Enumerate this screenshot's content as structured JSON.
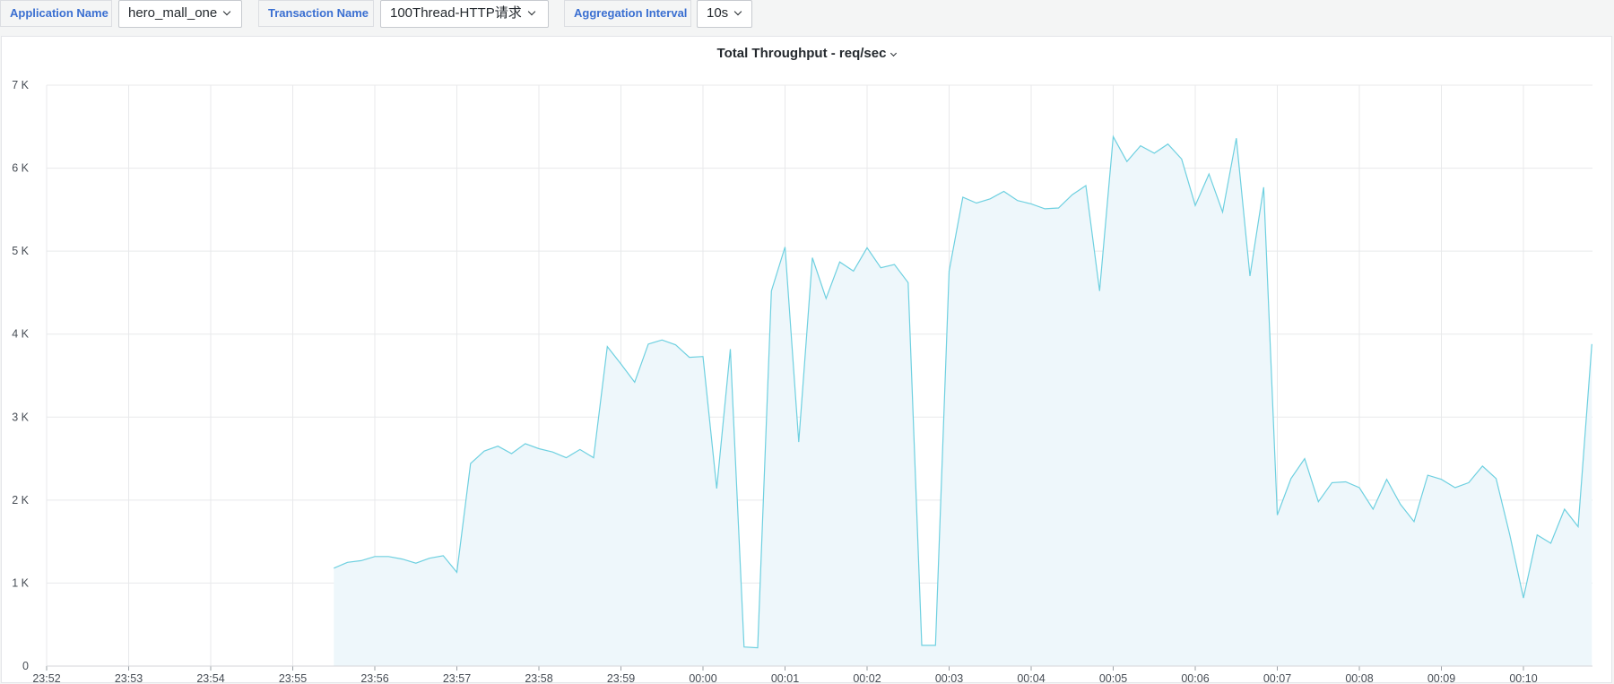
{
  "variables": [
    {
      "label": "Application Name",
      "value": "hero_mall_one"
    },
    {
      "label": "Transaction Name",
      "value": "100Thread-HTTP请求"
    },
    {
      "label": "Aggregation Interval",
      "value": "10s"
    }
  ],
  "panel": {
    "title": "Total Throughput - req/sec"
  },
  "colors": {
    "line": "#6ed0e0",
    "fill": "#eef7fb",
    "grid": "#e8e9eb",
    "label_accent": "#3a6fd1"
  },
  "chart_data": {
    "type": "area",
    "title": "Total Throughput - req/sec",
    "xlabel": "",
    "ylabel": "",
    "ylim": [
      0,
      7000
    ],
    "grid": true,
    "y_ticks": [
      {
        "value": 0,
        "label": "0"
      },
      {
        "value": 1000,
        "label": "1 K"
      },
      {
        "value": 2000,
        "label": "2 K"
      },
      {
        "value": 3000,
        "label": "3 K"
      },
      {
        "value": 4000,
        "label": "4 K"
      },
      {
        "value": 5000,
        "label": "5 K"
      },
      {
        "value": 6000,
        "label": "6 K"
      },
      {
        "value": 7000,
        "label": "7 K"
      }
    ],
    "x_ticks": [
      "23:52",
      "23:53",
      "23:54",
      "23:55",
      "23:56",
      "23:57",
      "23:58",
      "23:59",
      "00:00",
      "00:01",
      "00:02",
      "00:03",
      "00:04",
      "00:05",
      "00:06",
      "00:07",
      "00:08",
      "00:09",
      "00:10"
    ],
    "x_start": "23:52:00",
    "x_interval_seconds": 10,
    "first_point_index": 21,
    "series": [
      {
        "values": [
          1180,
          1250,
          1270,
          1320,
          1320,
          1290,
          1240,
          1300,
          1330,
          1130,
          2440,
          2590,
          2650,
          2560,
          2680,
          2620,
          2580,
          2510,
          2610,
          2510,
          3850,
          3640,
          3420,
          3880,
          3930,
          3870,
          3720,
          3730,
          2140,
          3820,
          230,
          220,
          4520,
          5050,
          2700,
          4920,
          4430,
          4870,
          4760,
          5040,
          4800,
          4840,
          4620,
          250,
          250,
          4760,
          5650,
          5580,
          5630,
          5720,
          5610,
          5570,
          5510,
          5520,
          5680,
          5790,
          4520,
          6380,
          6080,
          6270,
          6180,
          6290,
          6110,
          5550,
          5930,
          5470,
          6360,
          4700,
          5770,
          1820,
          2260,
          2500,
          1980,
          2210,
          2220,
          2150,
          1890,
          2250,
          1950,
          1740,
          2300,
          2250,
          2150,
          2210,
          2410,
          2260,
          1580,
          820,
          1580,
          1480,
          1890,
          1680,
          3880
        ]
      }
    ]
  }
}
